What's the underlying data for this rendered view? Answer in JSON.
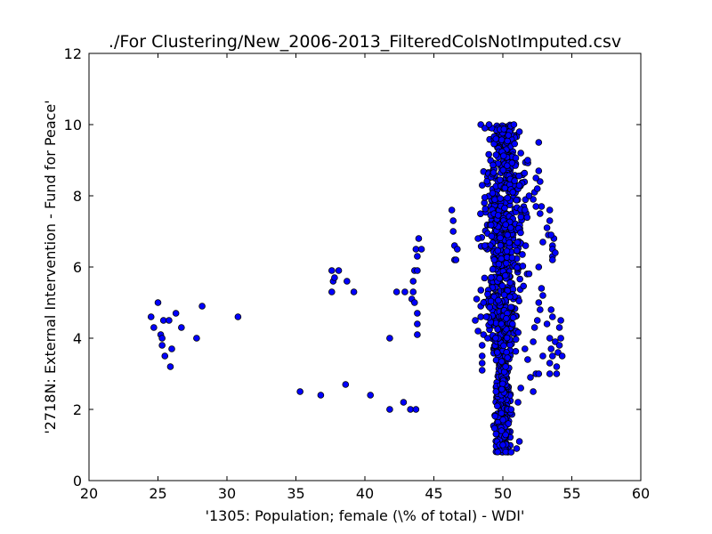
{
  "chart_data": {
    "type": "scatter",
    "title": "./For Clustering/New_2006-2013_FilteredColsNotImputed.csv",
    "xlabel": "'1305: Population; female  (\\% of total) - WDI'",
    "ylabel": "'2718N: External Intervention - Fund for Peace'",
    "xlim": [
      20,
      60
    ],
    "ylim": [
      0,
      12
    ],
    "xticks": [
      20,
      25,
      30,
      35,
      40,
      45,
      50,
      55,
      60
    ],
    "yticks": [
      0,
      2,
      4,
      6,
      8,
      10,
      12
    ],
    "grid": false,
    "legend": "none",
    "marker_color": "#0000ff",
    "marker_edge": "#000000",
    "points": [
      [
        24.5,
        4.6
      ],
      [
        24.7,
        4.3
      ],
      [
        25.0,
        5.0
      ],
      [
        25.2,
        4.1
      ],
      [
        25.3,
        3.8
      ],
      [
        25.3,
        4.0
      ],
      [
        25.4,
        4.5
      ],
      [
        25.5,
        3.5
      ],
      [
        25.8,
        4.5
      ],
      [
        25.9,
        3.2
      ],
      [
        26.0,
        3.7
      ],
      [
        26.3,
        4.7
      ],
      [
        26.7,
        4.3
      ],
      [
        27.8,
        4.0
      ],
      [
        28.2,
        4.9
      ],
      [
        30.8,
        4.6
      ],
      [
        35.3,
        2.5
      ],
      [
        36.8,
        2.4
      ],
      [
        37.6,
        5.9
      ],
      [
        37.6,
        5.3
      ],
      [
        37.7,
        5.6
      ],
      [
        37.8,
        5.7
      ],
      [
        38.1,
        5.9
      ],
      [
        38.6,
        2.7
      ],
      [
        38.7,
        5.6
      ],
      [
        39.2,
        5.3
      ],
      [
        40.4,
        2.4
      ],
      [
        41.8,
        4.0
      ],
      [
        41.8,
        2.0
      ],
      [
        42.3,
        5.3
      ],
      [
        42.8,
        2.2
      ],
      [
        42.9,
        5.3
      ],
      [
        43.3,
        2.0
      ],
      [
        43.4,
        5.1
      ],
      [
        43.5,
        5.3
      ],
      [
        43.5,
        5.6
      ],
      [
        43.6,
        5.0
      ],
      [
        43.6,
        5.9
      ],
      [
        43.7,
        2.0
      ],
      [
        43.7,
        6.5
      ],
      [
        43.8,
        5.9
      ],
      [
        43.8,
        6.3
      ],
      [
        43.8,
        4.7
      ],
      [
        43.8,
        4.4
      ],
      [
        43.8,
        4.1
      ],
      [
        43.9,
        6.8
      ],
      [
        44.1,
        6.5
      ],
      [
        46.3,
        7.6
      ],
      [
        46.4,
        7.3
      ],
      [
        46.4,
        7.0
      ],
      [
        46.5,
        6.6
      ],
      [
        46.5,
        6.2
      ],
      [
        46.7,
        6.5
      ],
      [
        46.6,
        6.2
      ],
      [
        48.0,
        4.5
      ],
      [
        48.1,
        5.1
      ],
      [
        48.2,
        6.8
      ],
      [
        48.2,
        4.2
      ],
      [
        48.4,
        4.9
      ],
      [
        48.4,
        4.6
      ],
      [
        48.5,
        3.8
      ],
      [
        48.5,
        3.1
      ],
      [
        48.5,
        3.3
      ],
      [
        48.5,
        3.5
      ],
      [
        48.6,
        5.0
      ],
      [
        48.7,
        6.6
      ],
      [
        48.6,
        4.1
      ],
      [
        48.8,
        4.6
      ],
      [
        48.9,
        4.0
      ],
      [
        53.2,
        4.4
      ],
      [
        53.4,
        4.0
      ],
      [
        53.5,
        4.8
      ],
      [
        53.5,
        3.7
      ],
      [
        53.6,
        3.5
      ],
      [
        53.4,
        3.3
      ],
      [
        53.4,
        3.0
      ],
      [
        53.6,
        4.6
      ],
      [
        53.8,
        3.9
      ],
      [
        53.9,
        3.2
      ],
      [
        53.9,
        3.0
      ],
      [
        54.0,
        3.6
      ],
      [
        54.1,
        4.3
      ],
      [
        54.2,
        4.5
      ],
      [
        54.2,
        4.0
      ],
      [
        54.3,
        3.5
      ],
      [
        54.1,
        3.8
      ],
      [
        53.2,
        7.1
      ],
      [
        53.3,
        6.9
      ],
      [
        53.4,
        7.6
      ],
      [
        53.4,
        7.3
      ],
      [
        53.6,
        6.6
      ],
      [
        53.6,
        6.5
      ],
      [
        53.6,
        6.3
      ],
      [
        53.6,
        6.2
      ],
      [
        53.7,
        6.8
      ],
      [
        53.8,
        6.4
      ],
      [
        53.5,
        6.9
      ],
      [
        52.6,
        9.5
      ],
      [
        52.6,
        8.7
      ],
      [
        52.7,
        8.4
      ],
      [
        52.4,
        8.5
      ],
      [
        52.3,
        8.1
      ],
      [
        52.5,
        8.2
      ],
      [
        52.2,
        7.9
      ],
      [
        52.8,
        7.7
      ],
      [
        52.4,
        7.7
      ],
      [
        52.7,
        7.5
      ],
      [
        52.9,
        6.7
      ],
      [
        52.6,
        6.0
      ],
      [
        52.6,
        5.0
      ],
      [
        52.7,
        4.8
      ],
      [
        52.9,
        5.2
      ],
      [
        52.8,
        5.4
      ],
      [
        52.5,
        4.5
      ],
      [
        52.3,
        4.3
      ],
      [
        52.2,
        2.5
      ],
      [
        52.4,
        3.0
      ],
      [
        52.6,
        3.0
      ],
      [
        52.9,
        3.5
      ],
      [
        52.2,
        3.9
      ],
      [
        49.2,
        9.9
      ],
      [
        49.5,
        9.6
      ],
      [
        50.4,
        9.7
      ],
      [
        51.2,
        9.8
      ],
      [
        51.8,
        9.0
      ],
      [
        48.4,
        10.0
      ],
      [
        48.7,
        9.9
      ],
      [
        49.0,
        10.0
      ],
      [
        50.8,
        10.0
      ],
      [
        51.3,
        9.2
      ],
      [
        51.9,
        8.0
      ],
      [
        51.6,
        7.6
      ],
      [
        50.0,
        1.0
      ],
      [
        50.6,
        0.8
      ],
      [
        51.0,
        0.9
      ],
      [
        51.2,
        1.1
      ],
      [
        49.9,
        1.4
      ],
      [
        50.4,
        1.6
      ],
      [
        50.6,
        2.0
      ],
      [
        51.1,
        2.2
      ],
      [
        51.3,
        2.6
      ],
      [
        50.2,
        3.2
      ],
      [
        49.6,
        3.6
      ],
      [
        49.5,
        2.5
      ],
      [
        51.6,
        3.7
      ],
      [
        51.8,
        3.4
      ],
      [
        52.0,
        2.9
      ]
    ],
    "dense_cluster": {
      "x_range": [
        48.3,
        51.9
      ],
      "y_range": [
        0.8,
        10.0
      ],
      "x_center": 50.0,
      "count": 900
    }
  }
}
